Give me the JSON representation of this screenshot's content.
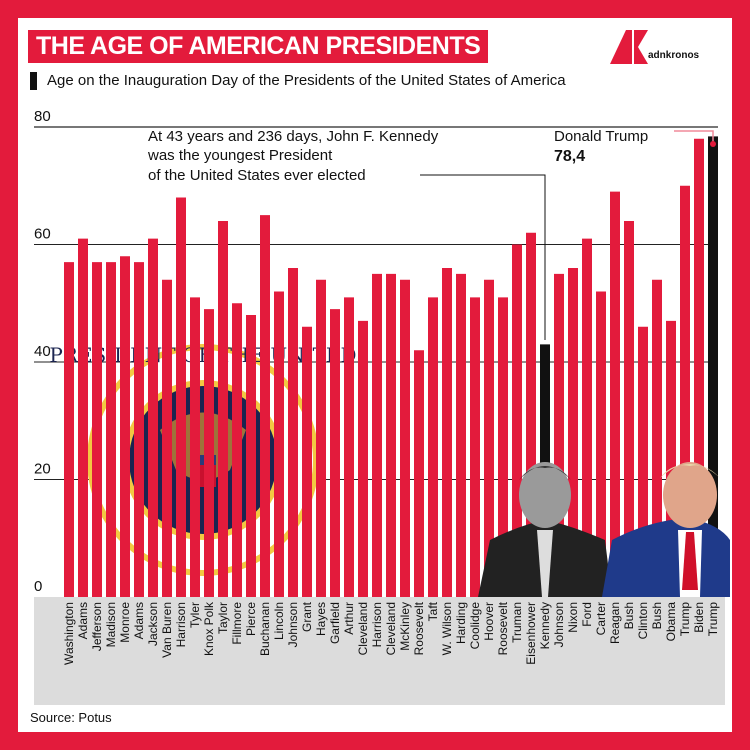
{
  "header": {
    "title": "THE AGE OF AMERICAN PRESIDENTS",
    "subtitle": "Age on the Inauguration Day of the Presidents of the United States of America",
    "logo": "adnkronos"
  },
  "source": "Source: Potus",
  "colors": {
    "bar": "#e31b3c",
    "highlight": "#111111",
    "frame": "#e31b3c",
    "label_band": "#dcdcdc"
  },
  "annotations": {
    "kennedy": [
      "At 43 years and 236 days, John F. Kennedy",
      "was the youngest President",
      "of the United States ever elected"
    ],
    "trump_name": "Donald Trump",
    "trump_value": "78,4"
  },
  "images": [
    "presidential-seal",
    "kennedy-portrait",
    "trump-portrait"
  ],
  "chart_data": {
    "type": "bar",
    "title": "",
    "xlabel": "",
    "ylabel": "",
    "ylim": [
      0,
      80
    ],
    "yticks": [
      0,
      20,
      40,
      60,
      80
    ],
    "grid": true,
    "categories": [
      "Washington",
      "Adams",
      "Jefferson",
      "Madison",
      "Monroe",
      "Adams",
      "Jackson",
      "Van Buren",
      "Harrison",
      "Tyler",
      "Knox Polk",
      "Taylor",
      "Fillmore",
      "Pierce",
      "Buchanan",
      "Lincoln",
      "Johnson",
      "Grant",
      "Hayes",
      "Garfield",
      "Arthur",
      "Cleveland",
      "Harrison",
      "Cleveland",
      "McKinley",
      "Roosevelt",
      "Taft",
      "W. Wilson",
      "Harding",
      "Coolidge",
      "Hoover",
      "Roosevelt",
      "Truman",
      "Eisenhower",
      "Kennedy",
      "Johnson",
      "Nixon",
      "Ford",
      "Carter",
      "Reagan",
      "Bush",
      "Clinton",
      "Bush",
      "Obama",
      "Trump",
      "Biden",
      "Trump"
    ],
    "values": [
      57,
      61,
      57,
      57,
      58,
      57,
      61,
      54,
      68,
      51,
      49,
      64,
      50,
      48,
      65,
      52,
      56,
      46,
      54,
      49,
      51,
      47,
      55,
      55,
      54,
      42,
      51,
      56,
      55,
      51,
      54,
      51,
      60,
      62,
      43,
      55,
      56,
      61,
      52,
      69,
      64,
      46,
      54,
      47,
      70,
      78,
      78.4
    ],
    "highlighted": [
      "Kennedy",
      "Trump"
    ]
  }
}
